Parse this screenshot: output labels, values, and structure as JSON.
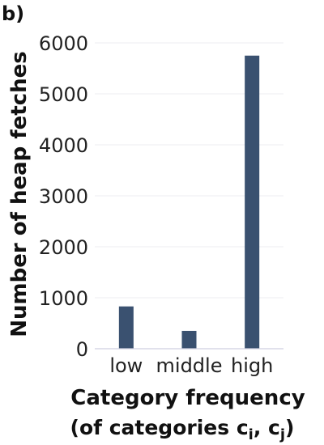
{
  "panel_label": "b)",
  "chart_data": {
    "type": "bar",
    "categories": [
      "low",
      "middle",
      "high"
    ],
    "values": [
      830,
      350,
      5750
    ],
    "ylabel": "Number of heap fetches",
    "xlabel_line1": "Category frequency",
    "xlabel_line2_prefix": "(of categories c",
    "xlabel_sub_i": "i",
    "xlabel_sep": ", c",
    "xlabel_sub_j": "j",
    "xlabel_suffix": ")",
    "ylim": [
      0,
      6000
    ],
    "yticks": [
      0,
      1000,
      2000,
      3000,
      4000,
      5000,
      6000
    ],
    "grid": true,
    "bar_color": "#3a5170"
  }
}
